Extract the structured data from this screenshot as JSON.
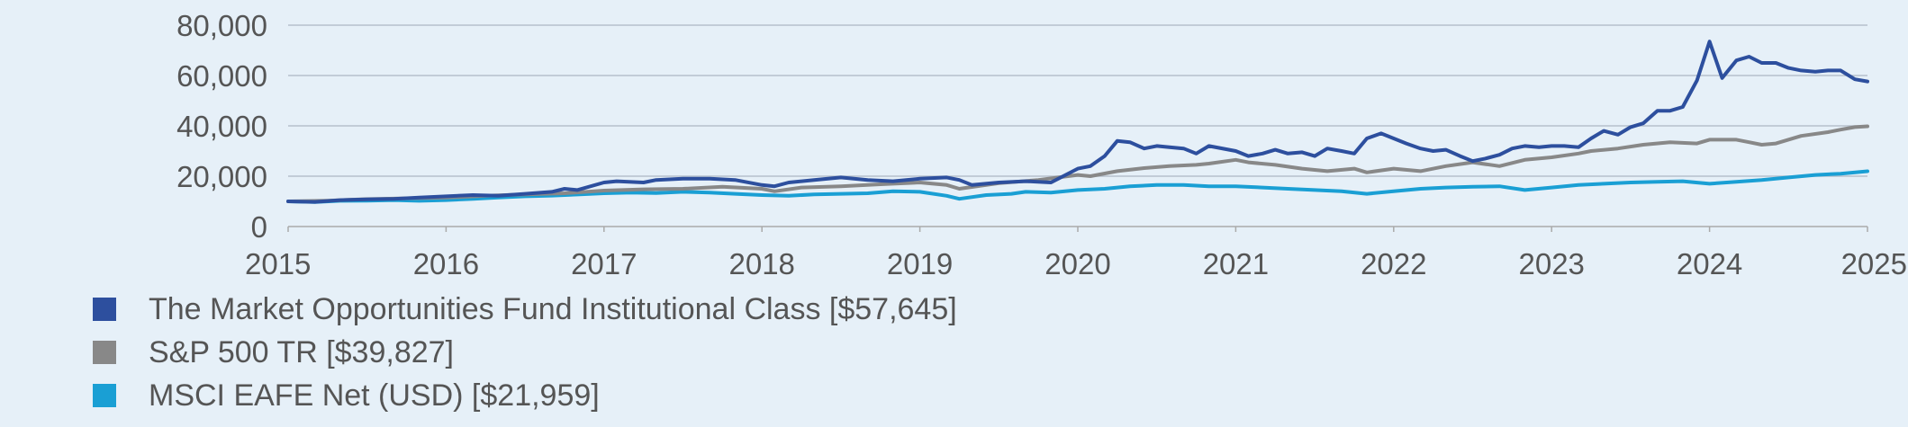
{
  "chart_data": {
    "type": "line",
    "title": "",
    "xlabel": "",
    "ylabel": "",
    "xlim": [
      2015,
      2025
    ],
    "ylim": [
      0,
      80000
    ],
    "y_ticks": [
      0,
      20000,
      40000,
      60000,
      80000
    ],
    "y_tick_labels": [
      "0",
      "20,000",
      "40,000",
      "60,000",
      "80,000"
    ],
    "x_ticks": [
      2015,
      2016,
      2017,
      2018,
      2019,
      2020,
      2021,
      2022,
      2023,
      2024,
      2025
    ],
    "x_tick_labels": [
      "2015",
      "2016",
      "2017",
      "2018",
      "2019",
      "2020",
      "2021",
      "2022",
      "2023",
      "2024",
      "2025"
    ],
    "grid": "horizontal",
    "legend_position": "bottom-left",
    "series": [
      {
        "name": "The Market Opportunities Fund Institutional Class [$57,645]",
        "color": "#2d4f9e",
        "x": [
          2015,
          2015.17,
          2015.33,
          2015.5,
          2015.67,
          2015.83,
          2016,
          2016.17,
          2016.33,
          2016.5,
          2016.67,
          2016.75,
          2016.83,
          2017,
          2017.08,
          2017.25,
          2017.33,
          2017.5,
          2017.67,
          2017.83,
          2018,
          2018.08,
          2018.17,
          2018.33,
          2018.5,
          2018.67,
          2018.83,
          2019,
          2019.17,
          2019.25,
          2019.33,
          2019.5,
          2019.67,
          2019.83,
          2020,
          2020.08,
          2020.17,
          2020.25,
          2020.33,
          2020.42,
          2020.5,
          2020.58,
          2020.67,
          2020.75,
          2020.83,
          2021,
          2021.08,
          2021.17,
          2021.25,
          2021.33,
          2021.42,
          2021.5,
          2021.58,
          2021.67,
          2021.75,
          2021.83,
          2021.92,
          2022,
          2022.08,
          2022.17,
          2022.25,
          2022.33,
          2022.42,
          2022.5,
          2022.58,
          2022.67,
          2022.75,
          2022.83,
          2022.92,
          2023,
          2023.08,
          2023.17,
          2023.25,
          2023.33,
          2023.42,
          2023.5,
          2023.58,
          2023.67,
          2023.75,
          2023.83,
          2023.92,
          2024,
          2024.08,
          2024.17,
          2024.25,
          2024.33,
          2024.42,
          2024.5,
          2024.58,
          2024.67,
          2024.75,
          2024.83,
          2024.92,
          2025
        ],
        "y": [
          10000,
          9800,
          10500,
          10800,
          11000,
          11500,
          12000,
          12500,
          12200,
          13000,
          13800,
          15000,
          14500,
          17500,
          18000,
          17500,
          18500,
          19000,
          19000,
          18500,
          16500,
          16000,
          17500,
          18500,
          19500,
          18500,
          18000,
          19000,
          19500,
          18500,
          16500,
          17500,
          18000,
          17500,
          23000,
          24000,
          28000,
          34000,
          33500,
          31000,
          32000,
          31500,
          31000,
          29000,
          32000,
          30000,
          28000,
          29000,
          30500,
          29000,
          29500,
          28000,
          31000,
          30000,
          29000,
          35000,
          37000,
          35000,
          33000,
          31000,
          30000,
          30500,
          28000,
          26000,
          27000,
          28500,
          31000,
          32000,
          31500,
          32000,
          32000,
          31500,
          35000,
          38000,
          36500,
          39500,
          41000,
          46000,
          46000,
          47500,
          58000,
          73500,
          59000,
          66000,
          67500,
          65000,
          65000,
          63000,
          62000,
          61500,
          62000,
          62000,
          58500,
          57645
        ]
      },
      {
        "name": "S&P 500 TR [$39,827]",
        "color": "#888888",
        "x": [
          2015,
          2015.25,
          2015.5,
          2015.75,
          2016,
          2016.25,
          2016.5,
          2016.75,
          2017,
          2017.25,
          2017.5,
          2017.75,
          2018,
          2018.08,
          2018.25,
          2018.5,
          2018.75,
          2019,
          2019.17,
          2019.25,
          2019.5,
          2019.75,
          2020,
          2020.08,
          2020.25,
          2020.42,
          2020.58,
          2020.75,
          2020.83,
          2021,
          2021.08,
          2021.25,
          2021.42,
          2021.58,
          2021.75,
          2021.83,
          2022,
          2022.17,
          2022.33,
          2022.5,
          2022.67,
          2022.83,
          2023,
          2023.17,
          2023.25,
          2023.42,
          2023.58,
          2023.75,
          2023.92,
          2024,
          2024.17,
          2024.25,
          2024.33,
          2024.42,
          2024.58,
          2024.75,
          2024.83,
          2024.92,
          2025
        ],
        "y": [
          10000,
          10300,
          10900,
          11200,
          11500,
          12200,
          12800,
          13200,
          14300,
          14800,
          15000,
          15800,
          15000,
          14000,
          15500,
          16000,
          16800,
          17500,
          16500,
          15000,
          17200,
          18500,
          20500,
          20000,
          22000,
          23200,
          24000,
          24500,
          25000,
          26500,
          25500,
          24500,
          23000,
          22000,
          23000,
          21500,
          23000,
          22000,
          24000,
          25500,
          24000,
          26500,
          27500,
          29000,
          30000,
          31000,
          32500,
          33500,
          33000,
          34500,
          34500,
          33500,
          32500,
          33000,
          36000,
          37500,
          38500,
          39500,
          39827
        ]
      },
      {
        "name": "MSCI EAFE Net (USD) [$21,959]",
        "color": "#1a9fd4",
        "x": [
          2015,
          2015.17,
          2015.33,
          2015.5,
          2015.67,
          2015.83,
          2016,
          2016.17,
          2016.33,
          2016.5,
          2016.67,
          2016.83,
          2017,
          2017.17,
          2017.33,
          2017.5,
          2017.67,
          2017.83,
          2018,
          2018.17,
          2018.33,
          2018.5,
          2018.67,
          2018.83,
          2019,
          2019.17,
          2019.25,
          2019.42,
          2019.58,
          2019.67,
          2019.83,
          2020,
          2020.17,
          2020.33,
          2020.5,
          2020.67,
          2020.83,
          2021,
          2021.17,
          2021.33,
          2021.5,
          2021.67,
          2021.83,
          2022,
          2022.17,
          2022.33,
          2022.5,
          2022.67,
          2022.83,
          2023,
          2023.17,
          2023.33,
          2023.5,
          2023.67,
          2023.83,
          2024,
          2024.17,
          2024.33,
          2024.5,
          2024.67,
          2024.83,
          2025
        ],
        "y": [
          10000,
          9700,
          10200,
          10300,
          10500,
          10200,
          10500,
          11000,
          11500,
          12000,
          12300,
          12700,
          13200,
          13500,
          13300,
          13800,
          13500,
          13000,
          12500,
          12200,
          12800,
          13000,
          13200,
          14000,
          13800,
          12200,
          11000,
          12500,
          13000,
          13800,
          13500,
          14500,
          15000,
          16000,
          16500,
          16500,
          16000,
          16000,
          15500,
          15000,
          14500,
          14000,
          13000,
          14000,
          15000,
          15500,
          15800,
          16000,
          14500,
          15500,
          16500,
          17000,
          17500,
          17800,
          18000,
          17000,
          17800,
          18500,
          19500,
          20500,
          21000,
          21959
        ]
      }
    ]
  }
}
